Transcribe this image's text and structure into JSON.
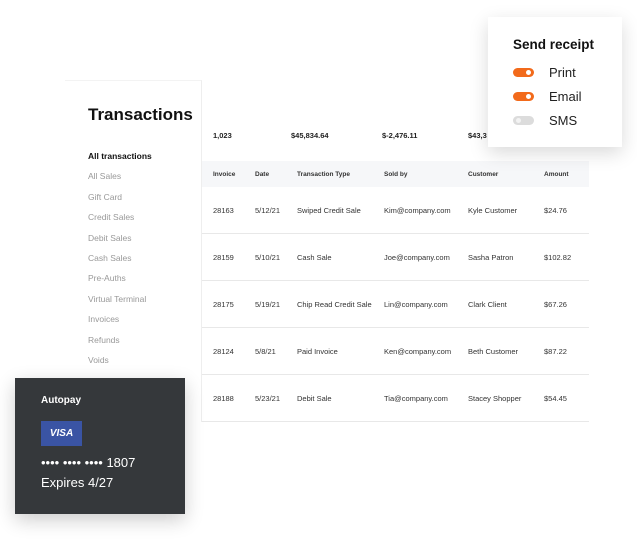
{
  "title": "Transactions",
  "nav": [
    "All transactions",
    "All Sales",
    "Gift Card",
    "Credit Sales",
    "Debit Sales",
    "Cash Sales",
    "Pre-Auths",
    "Virtual Terminal",
    "Invoices",
    "Refunds",
    "Voids"
  ],
  "stats": [
    "1,023",
    "$45,834.64",
    "$-2,476.11",
    "$43,3"
  ],
  "columns": [
    "Invoice",
    "Date",
    "Transaction Type",
    "Sold by",
    "Customer",
    "Amount"
  ],
  "rows": [
    [
      "28163",
      "5/12/21",
      "Swiped Credit Sale",
      "Kim@company.com",
      "Kyle Customer",
      "$24.76"
    ],
    [
      "28159",
      "5/10/21",
      "Cash Sale",
      "Joe@company.com",
      "Sasha Patron",
      "$102.82"
    ],
    [
      "28175",
      "5/19/21",
      "Chip Read Credit Sale",
      "Lin@company.com",
      "Clark Client",
      "$67.26"
    ],
    [
      "28124",
      "5/8/21",
      "Paid Invoice",
      "Ken@company.com",
      "Beth Customer",
      "$87.22"
    ],
    [
      "28188",
      "5/23/21",
      "Debit Sale",
      "Tia@company.com",
      "Stacey Shopper",
      "$54.45"
    ]
  ],
  "receipt": {
    "title": "Send receipt",
    "options": [
      {
        "label": "Print",
        "on": true
      },
      {
        "label": "Email",
        "on": true
      },
      {
        "label": "SMS",
        "on": false
      }
    ],
    "accent": "#f26a1b"
  },
  "autopay": {
    "label": "Autopay",
    "brand": "VISA",
    "number": "•••• •••• •••• 1807",
    "expires": "Expires 4/27"
  }
}
